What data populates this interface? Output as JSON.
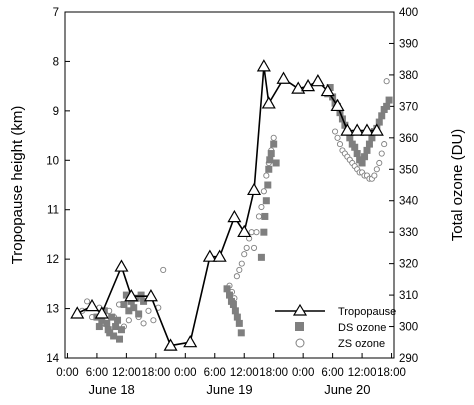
{
  "chart_data": {
    "type": "line",
    "xlabel": "",
    "left_ylabel": "Tropopause height (km)",
    "right_ylabel": "Total ozone (DU)",
    "left_ylim": [
      14,
      7
    ],
    "left_yticks": [
      7,
      8,
      9,
      10,
      11,
      12,
      13,
      14
    ],
    "right_ylim": [
      290,
      400
    ],
    "right_yticks": [
      290,
      300,
      310,
      320,
      330,
      340,
      350,
      360,
      370,
      380,
      390,
      400
    ],
    "xlim": [
      -0.5,
      66.5
    ],
    "x_unit": "hours since 00:00 June 18",
    "x_ticks": [
      {
        "x": 0,
        "label": "0:00"
      },
      {
        "x": 6,
        "label": "6:00"
      },
      {
        "x": 12,
        "label": "12:00"
      },
      {
        "x": 18,
        "label": "18:00"
      },
      {
        "x": 24,
        "label": "0:00"
      },
      {
        "x": 30,
        "label": "6:00"
      },
      {
        "x": 36,
        "label": "12:00"
      },
      {
        "x": 42,
        "label": "18:00"
      },
      {
        "x": 48,
        "label": "0:00"
      },
      {
        "x": 54,
        "label": "6:00"
      },
      {
        "x": 60,
        "label": "12:00"
      },
      {
        "x": 66,
        "label": "18:00"
      }
    ],
    "day_labels": [
      {
        "x": 9,
        "label": "June 18"
      },
      {
        "x": 33,
        "label": "June 19"
      },
      {
        "x": 57,
        "label": "June 20"
      }
    ],
    "legend_position": "bottom-right",
    "series": [
      {
        "name": "Tropopause",
        "marker": "triangle-open",
        "axis": "left",
        "x": [
          2,
          5,
          7,
          11,
          13,
          17,
          21,
          25,
          29,
          31,
          34,
          36,
          38,
          40,
          41,
          44,
          47,
          49,
          51,
          53,
          55,
          57,
          59,
          61,
          63
        ],
        "y": [
          13.1,
          12.95,
          13.1,
          12.15,
          12.75,
          12.75,
          13.75,
          13.68,
          11.95,
          11.95,
          11.15,
          11.45,
          10.6,
          8.1,
          8.85,
          8.35,
          8.55,
          8.5,
          8.4,
          8.6,
          8.9,
          9.4,
          9.4,
          9.4,
          9.4
        ]
      },
      {
        "name": "DS ozone",
        "marker": "square-filled",
        "axis": "right",
        "x": [
          6,
          6.5,
          7,
          7.5,
          8,
          8.3,
          8.6,
          9,
          9.4,
          9.8,
          10.2,
          10.6,
          11,
          11.5,
          12,
          12.5,
          13,
          13.5,
          14,
          14.5,
          15,
          15.5,
          32.5,
          33,
          33.4,
          33.8,
          34.2,
          34.6,
          35,
          35.4,
          39.5,
          40,
          40.2,
          40.5,
          40.8,
          41,
          41.2,
          41.5,
          42,
          42.5,
          53,
          53.5,
          54,
          54.5,
          55,
          55.5,
          56,
          56.5,
          57,
          57.5,
          58,
          58.5,
          59,
          59.5,
          60,
          60.5,
          61,
          61.5,
          62,
          62.5,
          63,
          63.5,
          64,
          64.5,
          65,
          65.5
        ],
        "y": [
          303,
          300,
          302,
          305,
          301,
          299,
          298,
          303,
          297,
          300,
          302,
          296,
          299,
          307,
          310,
          305,
          308,
          306,
          309,
          304,
          310,
          308,
          312,
          310,
          308,
          307,
          305,
          303,
          301,
          298,
          322,
          330,
          335,
          340,
          345,
          350,
          353,
          355,
          358,
          352,
          374,
          376,
          373,
          371,
          370,
          368,
          366,
          364,
          362,
          360,
          358,
          357,
          355,
          353,
          352,
          354,
          356,
          358,
          360,
          362,
          363,
          365,
          367,
          369,
          370,
          372
        ]
      },
      {
        "name": "ZS ozone",
        "marker": "circle-open",
        "axis": "right",
        "x": [
          3,
          4,
          5,
          6.5,
          7.5,
          8.5,
          9.5,
          10.5,
          11.5,
          12.5,
          13.5,
          14.5,
          15.5,
          16.5,
          17.5,
          18.5,
          19.5,
          33,
          33.5,
          34,
          34.5,
          35,
          35.5,
          36,
          36.5,
          37,
          37.5,
          38,
          38.5,
          39,
          39.5,
          40,
          40.5,
          41,
          41.5,
          42,
          54.5,
          55,
          55.5,
          56,
          56.5,
          57,
          57.5,
          58,
          58.5,
          59,
          59.5,
          60,
          60.5,
          61,
          61.5,
          62,
          62.5,
          63,
          63.5,
          64,
          64.5,
          65
        ],
        "y": [
          305,
          308,
          303,
          306,
          301,
          305,
          303,
          307,
          300,
          302,
          306,
          303,
          301,
          305,
          302,
          306,
          318,
          313,
          311,
          309,
          316,
          318,
          320,
          323,
          325,
          328,
          330,
          325,
          330,
          335,
          338,
          343,
          348,
          352,
          356,
          360,
          362,
          360,
          358,
          356,
          355,
          354,
          353,
          352,
          351,
          350,
          349,
          349,
          348,
          348,
          347,
          347,
          348,
          350,
          352,
          355,
          358,
          378
        ]
      }
    ]
  }
}
